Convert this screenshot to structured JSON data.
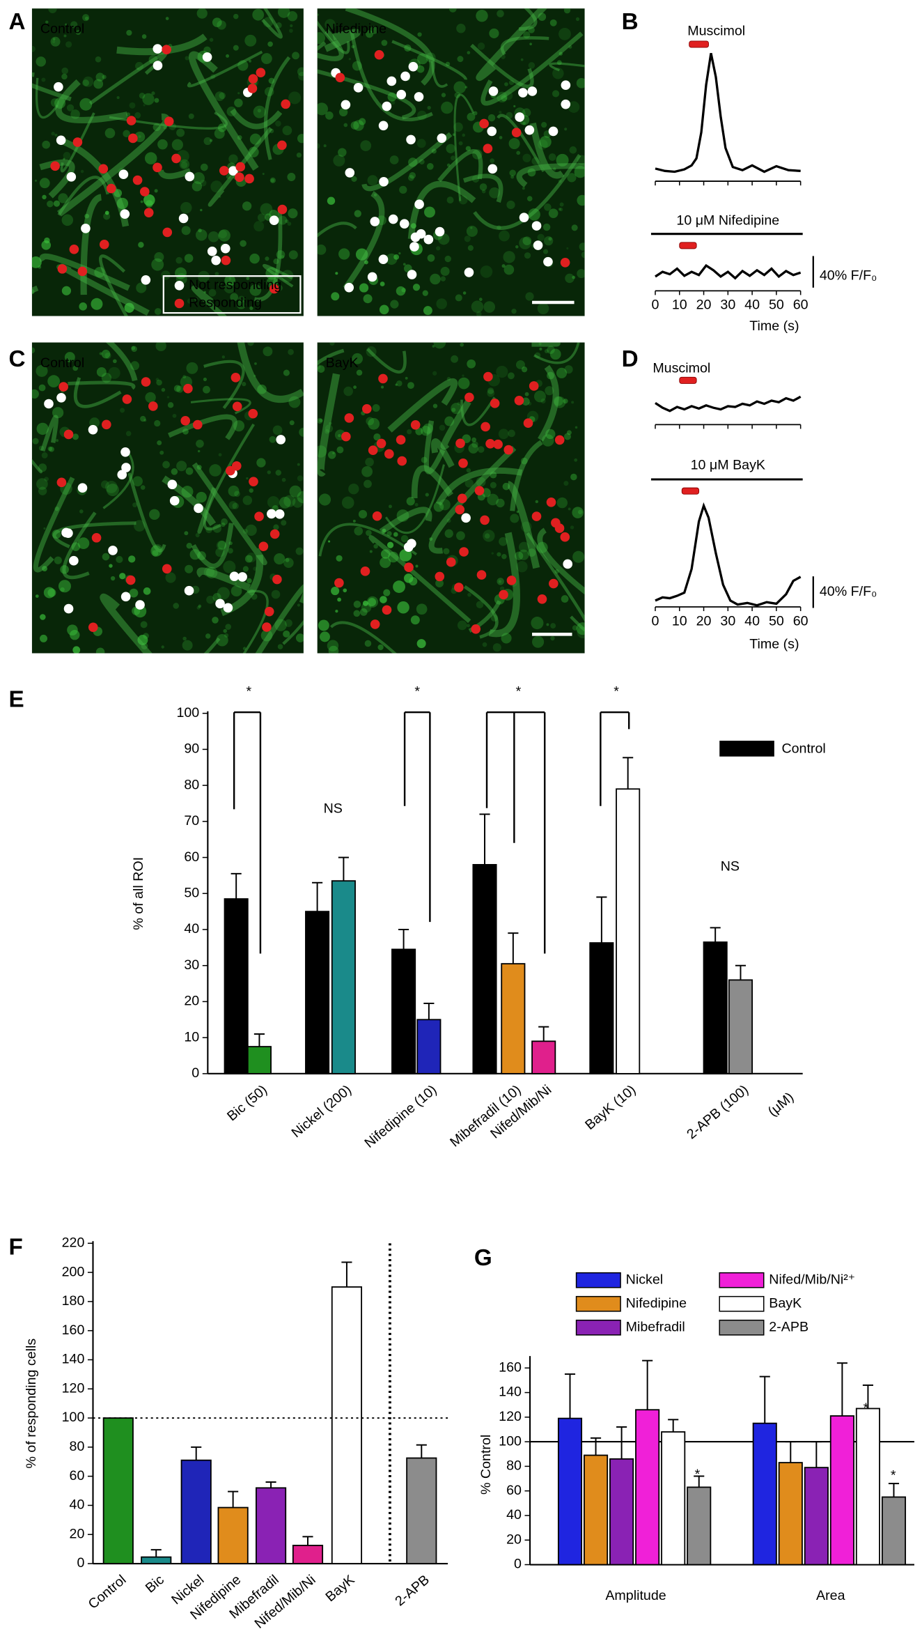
{
  "images": [
    {
      "panel": "A",
      "titles": [
        "Control",
        "Nifedipine"
      ],
      "legend": [
        "Not responding",
        "Responding"
      ]
    },
    {
      "panel": "C",
      "titles": [
        "Control",
        "BayK"
      ]
    }
  ],
  "chart_data": [
    {
      "panel": "B",
      "type": "line",
      "stimulus_label": "Muscimol",
      "treatment_label": "10 μM Nifedipine",
      "xlabel": "Time (s)",
      "xlim": [
        0,
        60
      ],
      "xticks": [
        0,
        10,
        20,
        30,
        40,
        50,
        60
      ],
      "scale_bar": {
        "value": 40,
        "label": "40% F/F₀"
      },
      "series": [
        {
          "x": [
            0,
            4,
            8,
            12,
            15,
            17,
            19,
            21,
            23,
            25,
            27,
            29,
            32,
            36,
            40,
            45,
            50,
            55,
            60
          ],
          "values": [
            4,
            1,
            0,
            3,
            8,
            17,
            50,
            110,
            150,
            120,
            70,
            30,
            6,
            2,
            8,
            0,
            7,
            2,
            1
          ],
          "stimulus": [
            14,
            22
          ]
        },
        {
          "x": [
            0,
            3,
            6,
            9,
            12,
            15,
            18,
            21,
            24,
            27,
            30,
            33,
            36,
            39,
            42,
            45,
            48,
            51,
            54,
            57,
            60
          ],
          "values": [
            2,
            8,
            5,
            12,
            3,
            8,
            4,
            16,
            10,
            2,
            8,
            0,
            9,
            3,
            10,
            4,
            12,
            2,
            9,
            4,
            7
          ],
          "stimulus": [
            10,
            17
          ]
        }
      ]
    },
    {
      "panel": "D",
      "type": "line",
      "stimulus_label": "Muscimol",
      "treatment_label": "10 μM BayK",
      "xlabel": "Time (s)",
      "xlim": [
        0,
        60
      ],
      "xticks": [
        0,
        10,
        20,
        30,
        40,
        50,
        60
      ],
      "scale_bar": {
        "value": 40,
        "label": "40% F/F₀"
      },
      "series": [
        {
          "x": [
            0,
            3,
            6,
            9,
            12,
            15,
            18,
            21,
            24,
            27,
            30,
            33,
            36,
            39,
            42,
            45,
            48,
            51,
            54,
            57,
            60
          ],
          "values": [
            10,
            4,
            0,
            5,
            2,
            6,
            3,
            7,
            4,
            2,
            6,
            5,
            9,
            7,
            12,
            9,
            13,
            11,
            16,
            13,
            18
          ],
          "stimulus": [
            10,
            17
          ]
        },
        {
          "x": [
            0,
            3,
            6,
            9,
            12,
            15,
            18,
            20,
            22,
            25,
            28,
            31,
            34,
            38,
            42,
            46,
            50,
            54,
            57,
            60
          ],
          "values": [
            0,
            4,
            3,
            6,
            10,
            40,
            100,
            120,
            105,
            60,
            20,
            0,
            -5,
            -3,
            -6,
            -2,
            -4,
            8,
            25,
            30
          ],
          "stimulus": [
            11,
            18
          ]
        }
      ]
    },
    {
      "panel": "E",
      "type": "bar",
      "ylabel": "% of all ROI",
      "ylim": [
        0,
        100
      ],
      "yticks": [
        0,
        10,
        20,
        30,
        40,
        50,
        60,
        70,
        80,
        90,
        100
      ],
      "legend": {
        "name": "Control",
        "color": "#000000"
      },
      "x_unit": "(μM)",
      "groups": [
        {
          "control": {
            "value": 48.5,
            "error": 7
          },
          "treatments": [
            {
              "label": "Bic (50)",
              "color": "#1f8f1f",
              "value": 7.5,
              "error": 3.5
            }
          ]
        },
        {
          "control": {
            "value": 45,
            "error": 8
          },
          "treatments": [
            {
              "label": "Nickel (200)",
              "color": "#1a8a8a",
              "value": 53.5,
              "error": 6.5
            }
          ]
        },
        {
          "control": {
            "value": 34.5,
            "error": 5.5
          },
          "treatments": [
            {
              "label": "Nifedipine (10)",
              "color": "#1f25b8",
              "value": 15,
              "error": 4.5
            }
          ]
        },
        {
          "control": {
            "value": 58,
            "error": 14
          },
          "treatments": [
            {
              "label": "Mibefradil (10)",
              "color": "#e08c1c",
              "value": 30.5,
              "error": 8.5
            },
            {
              "label": "Nifed/Mib/Ni",
              "color": "#e0208c",
              "value": 9,
              "error": 4
            }
          ]
        },
        {
          "control": {
            "value": 36.3,
            "error": 12.7
          },
          "treatments": [
            {
              "label": "BayK (10)",
              "color": "#ffffff",
              "value": 79,
              "error": 8.7
            }
          ]
        },
        {
          "control": {
            "value": 36.5,
            "error": 4
          },
          "treatments": [
            {
              "label": "2-APB (100)",
              "color": "#8c8c8c",
              "value": 26,
              "error": 4
            }
          ]
        }
      ],
      "annotations": [
        "*",
        "NS",
        "*",
        "*",
        "*",
        "NS"
      ]
    },
    {
      "panel": "F",
      "type": "bar",
      "ylabel": "% of responding cells",
      "ylim": [
        0,
        220
      ],
      "yticks": [
        0,
        20,
        40,
        60,
        80,
        100,
        120,
        140,
        160,
        180,
        200,
        220
      ],
      "categories": [
        "Control",
        "Bic",
        "Nickel",
        "Nifedipine",
        "Mibefradil",
        "Nifed/Mib/Ni",
        "BayK",
        "2-APB"
      ],
      "values": [
        100,
        4.5,
        71,
        38.5,
        52,
        12.5,
        190,
        72.5
      ],
      "errors": [
        null,
        5,
        9,
        11,
        4,
        6,
        17,
        9
      ],
      "colors": [
        "#1f8f1f",
        "#1a8a8a",
        "#1f25b8",
        "#e08c1c",
        "#8a22b4",
        "#e0208c",
        "#ffffff",
        "#8c8c8c"
      ],
      "reference": 100
    },
    {
      "panel": "G",
      "type": "bar",
      "ylabel": "% Control",
      "ylim": [
        0,
        168
      ],
      "yticks": [
        0,
        20,
        40,
        60,
        80,
        100,
        120,
        140,
        160
      ],
      "categories": [
        "Amplitude",
        "Area"
      ],
      "reference": 100,
      "series": [
        {
          "name": "Nickel",
          "color": "#1f25e0",
          "values": [
            119,
            115
          ],
          "errors": [
            36,
            38
          ]
        },
        {
          "name": "Nifedipine",
          "color": "#e08c1c",
          "values": [
            89,
            83
          ],
          "errors": [
            14,
            17
          ]
        },
        {
          "name": "Mibefradil",
          "color": "#8a22b4",
          "values": [
            86,
            79
          ],
          "errors": [
            26,
            21
          ]
        },
        {
          "name": "Nifed/Mib/Ni²⁺",
          "color": "#f020d8",
          "values": [
            126,
            121
          ],
          "errors": [
            40,
            43
          ]
        },
        {
          "name": "BayK",
          "color": "#ffffff",
          "values": [
            108,
            127
          ],
          "errors": [
            10,
            19
          ]
        },
        {
          "name": "2-APB",
          "color": "#8c8c8c",
          "values": [
            63,
            55
          ],
          "errors": [
            9,
            11
          ]
        }
      ],
      "annotations": [
        "*",
        "*",
        "*"
      ]
    }
  ]
}
